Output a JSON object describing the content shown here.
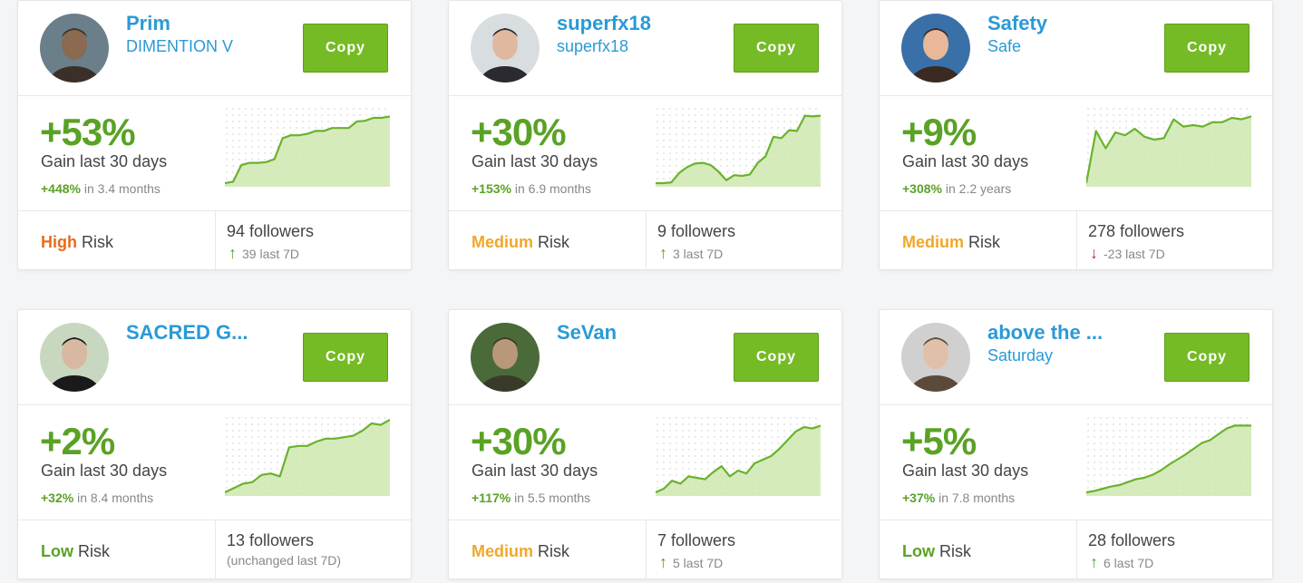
{
  "colors": {
    "accent_blue": "#2a9ad6",
    "copy_green": "#75bb25",
    "gain_green": "#5aa225",
    "risk_high": "#e86c1a",
    "risk_medium": "#f0a72a",
    "risk_low": "#5aa225",
    "trend_down": "#c8234a"
  },
  "traders": [
    {
      "name": "Prim",
      "subtitle": "DIMENTION V",
      "copy_label": "Copy",
      "gain": "+53%",
      "gain_label": "Gain last 30 days",
      "total_gain": "+448%",
      "period": " in 3.4 months",
      "risk_level": "High",
      "risk_word": " Risk",
      "risk_color": "#e86c1a",
      "followers": "94 followers",
      "trend": "up",
      "followers_change": "39 last 7D",
      "sparkline": [
        0,
        2,
        25,
        28,
        28,
        29,
        33,
        62,
        66,
        66,
        68,
        72,
        72,
        76,
        76,
        76,
        85,
        86,
        90,
        90,
        92
      ]
    },
    {
      "name": "superfx18",
      "subtitle": "superfx18",
      "copy_label": "Copy",
      "gain": "+30%",
      "gain_label": "Gain last 30 days",
      "total_gain": "+153%",
      "period": " in 6.9 months",
      "risk_level": "Medium",
      "risk_word": " Risk",
      "risk_color": "#f0a72a",
      "followers": "9 followers",
      "trend": "up",
      "followers_change": "3 last 7D",
      "sparkline": [
        0,
        0,
        1,
        14,
        22,
        27,
        28,
        25,
        16,
        4,
        11,
        10,
        12,
        28,
        37,
        64,
        62,
        73,
        72,
        93,
        92,
        93
      ]
    },
    {
      "name": "Safety",
      "subtitle": "Safe",
      "copy_label": "Copy",
      "gain": "+9%",
      "gain_label": "Gain last 30 days",
      "total_gain": "+308%",
      "period": " in 2.2 years",
      "risk_level": "Medium",
      "risk_word": " Risk",
      "risk_color": "#f0a72a",
      "followers": "278 followers",
      "trend": "down",
      "followers_change": "-23 last 7D",
      "sparkline": [
        0,
        72,
        48,
        70,
        66,
        75,
        64,
        60,
        62,
        88,
        78,
        80,
        78,
        84,
        84,
        90,
        88,
        92
      ]
    },
    {
      "name": "SACRED G...",
      "subtitle": "",
      "copy_label": "Copy",
      "gain": "+2%",
      "gain_label": "Gain last 30 days",
      "total_gain": "+32%",
      "period": " in 8.4 months",
      "risk_level": "Low",
      "risk_word": " Risk",
      "risk_color": "#5aa225",
      "followers": "13 followers",
      "trend": "none",
      "followers_change": "(unchanged last 7D)",
      "sparkline": [
        0,
        6,
        12,
        14,
        24,
        26,
        22,
        62,
        64,
        64,
        70,
        74,
        74,
        76,
        78,
        85,
        95,
        93,
        100
      ]
    },
    {
      "name": "SeVan",
      "subtitle": "",
      "copy_label": "Copy",
      "gain": "+30%",
      "gain_label": "Gain last 30 days",
      "total_gain": "+117%",
      "period": " in 5.5 months",
      "risk_level": "Medium",
      "risk_word": " Risk",
      "risk_color": "#f0a72a",
      "followers": "7 followers",
      "trend": "up",
      "followers_change": "5 last 7D",
      "sparkline": [
        0,
        5,
        16,
        12,
        22,
        20,
        18,
        28,
        36,
        22,
        30,
        26,
        40,
        45,
        50,
        60,
        72,
        84,
        90,
        88,
        92
      ]
    },
    {
      "name": "above the ...",
      "subtitle": "Saturday",
      "copy_label": "Copy",
      "gain": "+5%",
      "gain_label": "Gain last 30 days",
      "total_gain": "+37%",
      "period": " in 7.8 months",
      "risk_level": "Low",
      "risk_word": " Risk",
      "risk_color": "#5aa225",
      "followers": "28 followers",
      "trend": "up",
      "followers_change": "6 last 7D",
      "sparkline": [
        0,
        2,
        5,
        8,
        10,
        14,
        18,
        20,
        24,
        30,
        38,
        45,
        52,
        60,
        68,
        72,
        80,
        88,
        92,
        92,
        92
      ]
    }
  ]
}
